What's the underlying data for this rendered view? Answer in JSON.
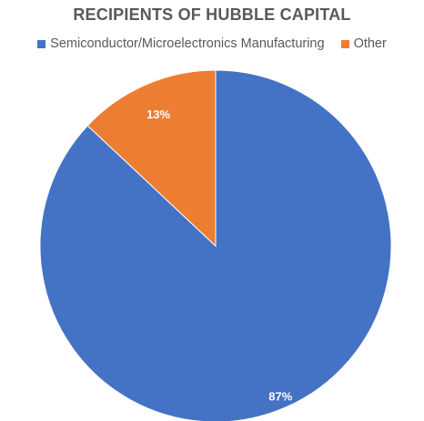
{
  "chart_data": {
    "type": "pie",
    "title": "RECIPIENTS OF HUBBLE CAPITAL",
    "legend_position": "top",
    "series": [
      {
        "name": "Semiconductor/Microelectronics Manufacturing",
        "value": 87,
        "label": "87%",
        "color": "#4472C4"
      },
      {
        "name": "Other",
        "value": 13,
        "label": "13%",
        "color": "#ED7D31"
      }
    ]
  }
}
